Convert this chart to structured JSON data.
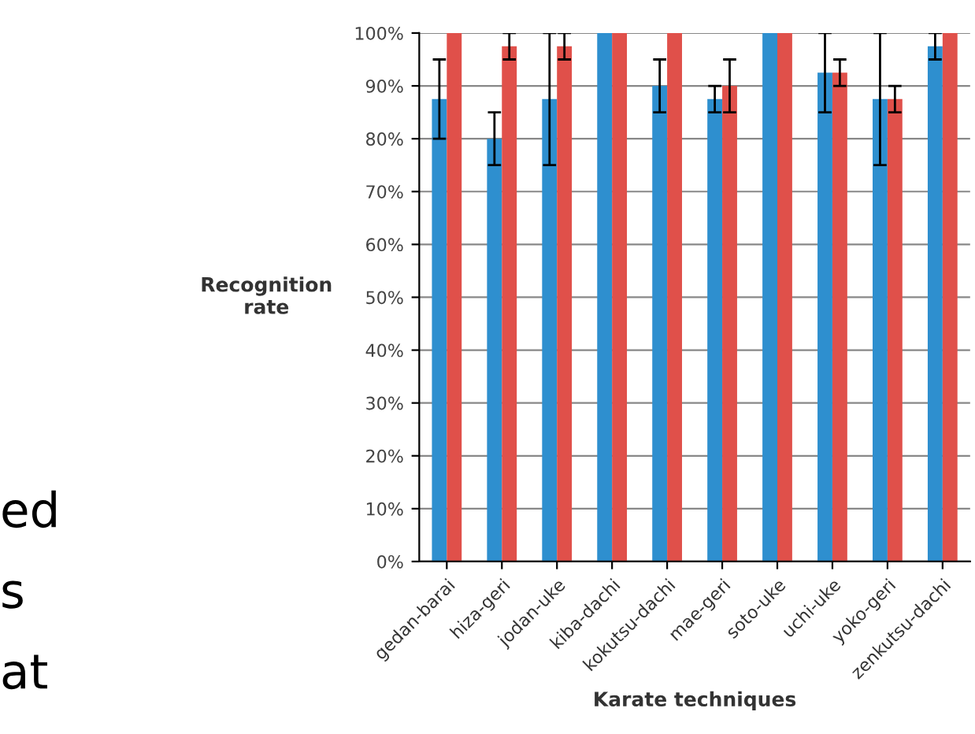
{
  "chart_data": {
    "type": "bar",
    "xlabel": "Karate techniques",
    "ylabel": "Recognition\nrate",
    "categories": [
      "gedan-barai",
      "hiza-geri",
      "jodan-uke",
      "kiba-dachi",
      "kokutsu-dachi",
      "mae-geri",
      "soto-uke",
      "uchi-uke",
      "yoko-geri",
      "zenkutsu-dachi"
    ],
    "series": [
      {
        "color": "#2e8fcf",
        "values": [
          87.5,
          80,
          87.5,
          100,
          90,
          87.5,
          100,
          92.5,
          87.5,
          97.5
        ],
        "errors": [
          7.5,
          5,
          12.5,
          null,
          5,
          2.5,
          null,
          7.5,
          12.5,
          2.5
        ]
      },
      {
        "color": "#e0504a",
        "values": [
          100,
          97.5,
          97.5,
          100,
          100,
          90,
          100,
          92.5,
          87.5,
          100
        ],
        "errors": [
          null,
          2.5,
          2.5,
          null,
          null,
          5,
          null,
          2.5,
          2.5,
          null
        ]
      }
    ],
    "ylim": [
      0,
      100
    ],
    "yticks": [
      {
        "value": 0,
        "label": "0%"
      },
      {
        "value": 10,
        "label": "10%"
      },
      {
        "value": 20,
        "label": "20%"
      },
      {
        "value": 30,
        "label": "30%"
      },
      {
        "value": 40,
        "label": "40%"
      },
      {
        "value": 50,
        "label": "50%"
      },
      {
        "value": 60,
        "label": "60%"
      },
      {
        "value": 70,
        "label": "70%"
      },
      {
        "value": 80,
        "label": "80%"
      },
      {
        "value": 90,
        "label": "90%"
      },
      {
        "value": 100,
        "label": "100%"
      }
    ],
    "grid": "y",
    "annotations": [
      "ed",
      "s",
      "at"
    ]
  }
}
